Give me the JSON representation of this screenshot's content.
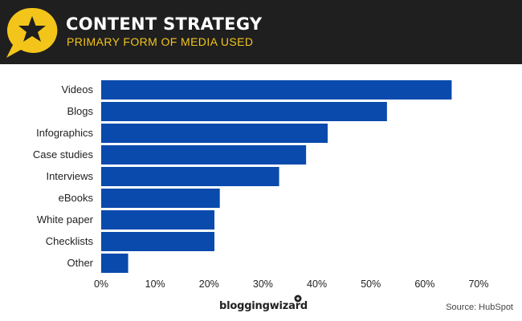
{
  "header": {
    "title": "CONTENT STRATEGY",
    "subtitle": "PRIMARY FORM OF MEDIA USED",
    "badge_icon": "star-speech-bubble-icon",
    "background_color": "#1f1f1f",
    "accent_color": "#f3c51a"
  },
  "footer": {
    "brand": "bloggingwizard",
    "source": "Source: HubSpot"
  },
  "chart_data": {
    "type": "bar",
    "orientation": "horizontal",
    "categories": [
      "Videos",
      "Blogs",
      "Infographics",
      "Case studies",
      "Interviews",
      "eBooks",
      "White paper",
      "Checklists",
      "Other"
    ],
    "values": [
      65,
      53,
      42,
      38,
      33,
      22,
      21,
      21,
      5
    ],
    "xlim": [
      0,
      70
    ],
    "xticks": [
      "0%",
      "10%",
      "20%",
      "30%",
      "40%",
      "50%",
      "60%",
      "70%"
    ],
    "unit": "%",
    "bar_color": "#0a4aad",
    "grid": false
  }
}
